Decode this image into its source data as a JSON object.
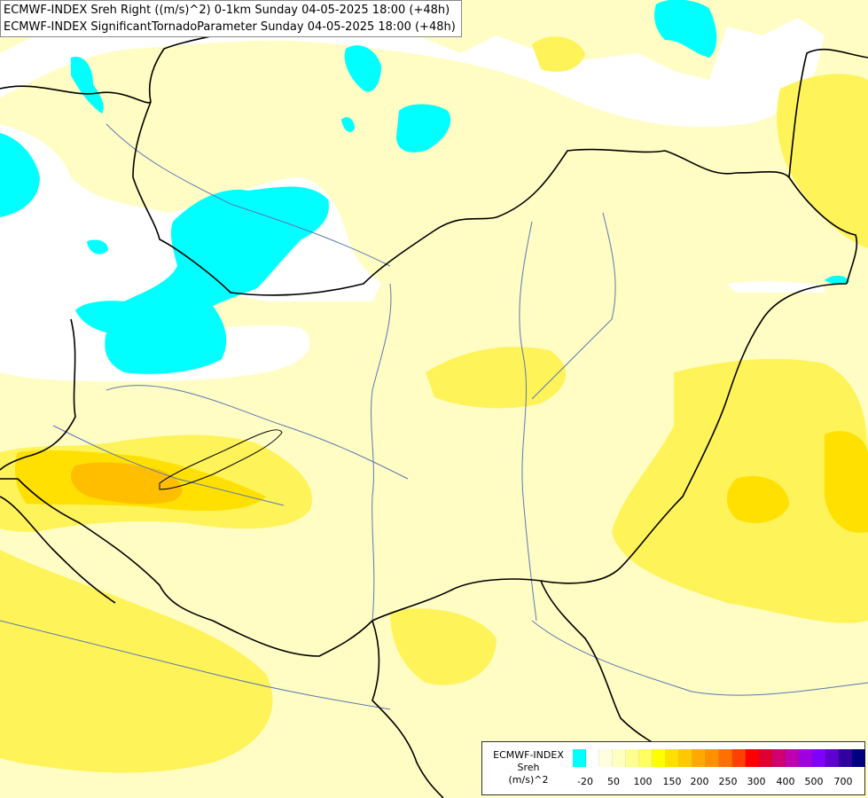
{
  "title": {
    "line1": "ECMWF-INDEX Sreh Right ((m/s)^2) 0-1km Sunday 04-05-2025 18:00 (+48h)",
    "line2": "ECMWF-INDEX SignificantTornadoParameter Sunday 04-05-2025 18:00 (+48h)"
  },
  "legend": {
    "source": "ECMWF-INDEX",
    "variable": "Sreh",
    "unit": "(m/s)^2",
    "colors": [
      "#00ffff",
      "#ffffff",
      "#ffffe0",
      "#ffffc0",
      "#ffff90",
      "#ffff60",
      "#ffff00",
      "#ffe000",
      "#ffc800",
      "#ffa800",
      "#ff9000",
      "#ff7000",
      "#ff4000",
      "#ff0000",
      "#e00030",
      "#d00070",
      "#c000b0",
      "#a000e0",
      "#8000ff",
      "#6000d0",
      "#3000a0",
      "#000080"
    ],
    "ticks": [
      "-20",
      "50",
      "100",
      "150",
      "200",
      "250",
      "300",
      "400",
      "500",
      "700"
    ]
  }
}
